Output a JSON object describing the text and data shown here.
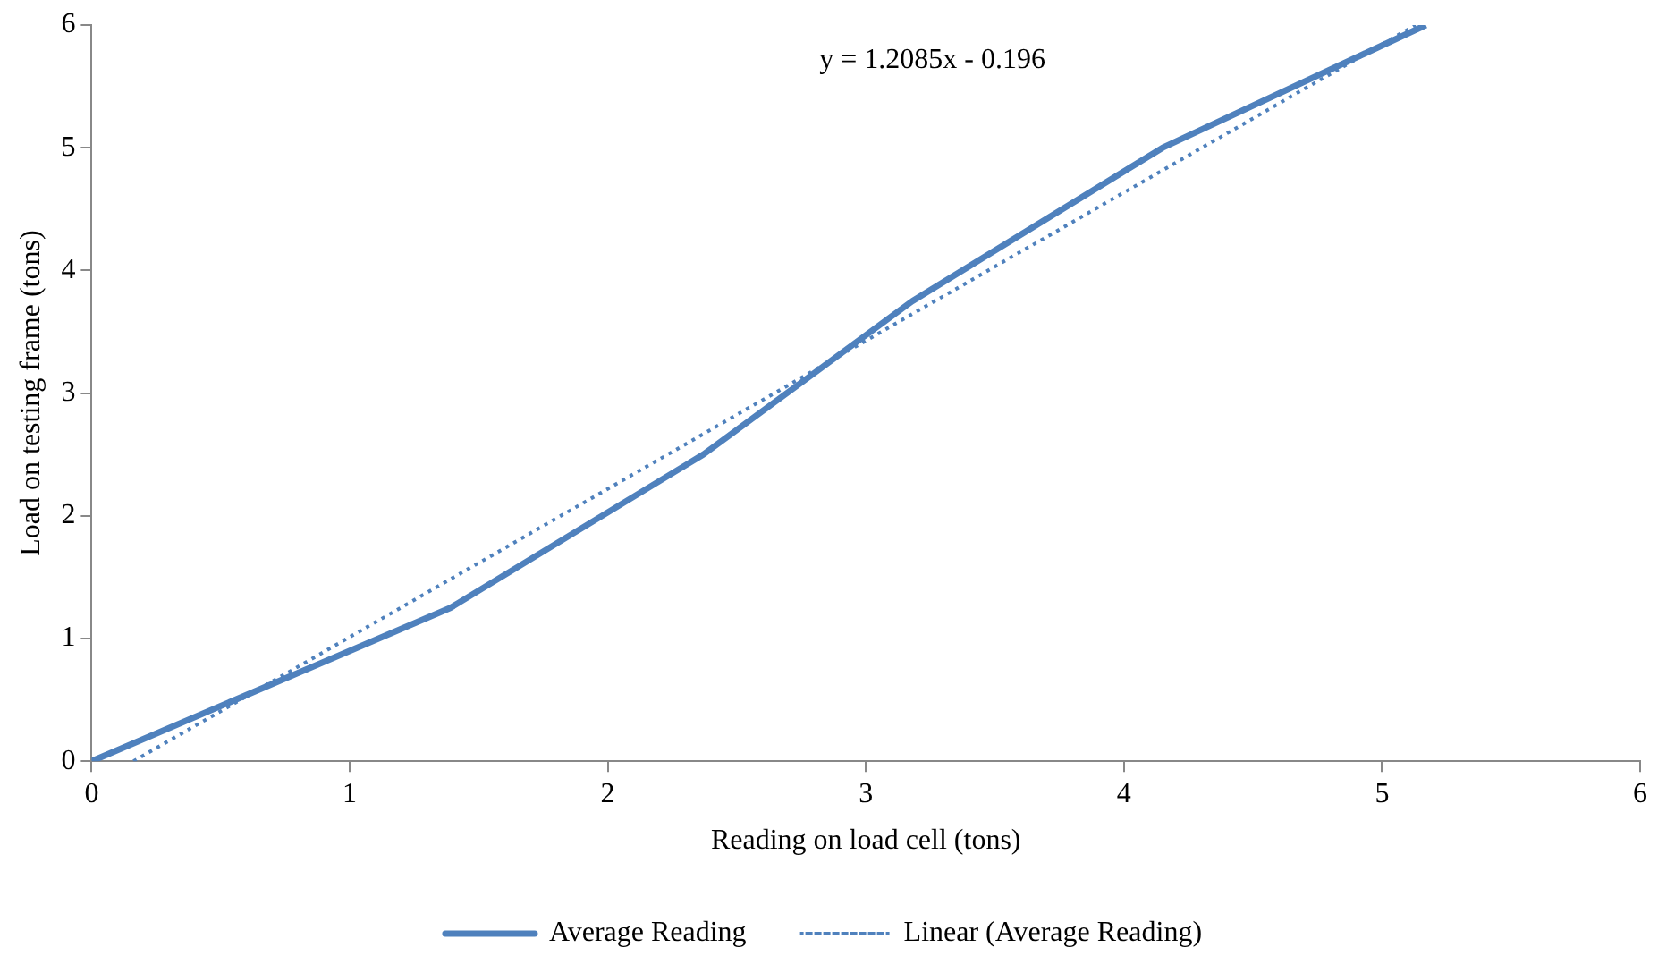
{
  "chart_data": {
    "type": "line",
    "xlabel": "Reading on load cell (tons)",
    "ylabel": "Load on testing frame (tons)",
    "annotations": [
      "y = 1.2085x - 0.196"
    ],
    "xlim": [
      0,
      6
    ],
    "xticks": [
      0,
      1,
      2,
      3,
      4,
      5,
      6
    ],
    "ylim": [
      0,
      6
    ],
    "yticks": [
      0,
      1,
      2,
      3,
      4,
      5,
      6
    ],
    "grid": false,
    "legend": "bottom",
    "marker": "none",
    "series": [
      {
        "name": "Average Reading",
        "color": "#4f81bd",
        "x": [
          0,
          1.39,
          2.37,
          3.18,
          4.15,
          5.17
        ],
        "values": [
          0,
          1.25,
          2.5,
          3.75,
          5,
          6
        ],
        "line_style": "solid"
      },
      {
        "name": "Linear (Average Reading)",
        "color": "#4f81bd",
        "x": [
          0.162,
          5.13
        ],
        "values": [
          0,
          6
        ],
        "line_style": "dotted"
      }
    ]
  }
}
